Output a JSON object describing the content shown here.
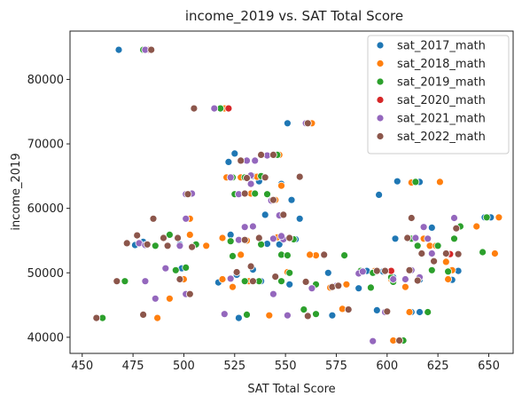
{
  "chart_data": {
    "type": "scatter",
    "title": "income_2019 vs. SAT Total Score",
    "xlabel": "SAT Total Score",
    "ylabel": "income_2019",
    "xlim": [
      444,
      662
    ],
    "ylim": [
      37500,
      87500
    ],
    "xticks": [
      450,
      475,
      500,
      525,
      550,
      575,
      600,
      625,
      650
    ],
    "yticks": [
      40000,
      50000,
      60000,
      70000,
      80000
    ],
    "grid": false,
    "legend_position": "top-right",
    "series": [
      {
        "name": "sat_2017_math",
        "color": "#1f77b4",
        "points": [
          [
            468,
            84600
          ],
          [
            505,
            75500
          ],
          [
            551,
            73200
          ],
          [
            525,
            68500
          ],
          [
            522,
            67200
          ],
          [
            534,
            65000
          ],
          [
            537,
            64200
          ],
          [
            548,
            63800
          ],
          [
            553,
            61300
          ],
          [
            596,
            62100
          ],
          [
            605,
            64200
          ],
          [
            616,
            64100
          ],
          [
            540,
            59000
          ],
          [
            557,
            58400
          ],
          [
            523,
            55900
          ],
          [
            541,
            54500
          ],
          [
            547,
            54400
          ],
          [
            555,
            55200
          ],
          [
            604,
            55300
          ],
          [
            622,
            57000
          ],
          [
            648,
            58600
          ],
          [
            651,
            58600
          ],
          [
            498,
            54400
          ],
          [
            517,
            48500
          ],
          [
            526,
            49700
          ],
          [
            534,
            50500
          ],
          [
            538,
            48700
          ],
          [
            552,
            48200
          ],
          [
            571,
            50000
          ],
          [
            586,
            47600
          ],
          [
            590,
            50300
          ],
          [
            598,
            50200
          ],
          [
            603,
            49300
          ],
          [
            613,
            55300
          ],
          [
            616,
            48900
          ],
          [
            632,
            48900
          ],
          [
            635,
            50300
          ],
          [
            527,
            43000
          ],
          [
            573,
            43400
          ],
          [
            595,
            44200
          ],
          [
            612,
            43900
          ],
          [
            616,
            43900
          ],
          [
            499,
            50700
          ],
          [
            480,
            54800
          ],
          [
            476,
            54300
          ]
        ]
      },
      {
        "name": "sat_2018_math",
        "color": "#ff7f0e",
        "points": [
          [
            482,
            84600
          ],
          [
            520,
            75500
          ],
          [
            563,
            73200
          ],
          [
            528,
            64800
          ],
          [
            536,
            64900
          ],
          [
            547,
            68300
          ],
          [
            521,
            64800
          ],
          [
            533,
            62300
          ],
          [
            545,
            61300
          ],
          [
            548,
            63500
          ],
          [
            612,
            64000
          ],
          [
            626,
            64100
          ],
          [
            503,
            58400
          ],
          [
            503,
            55900
          ],
          [
            511,
            54200
          ],
          [
            519,
            55400
          ],
          [
            528,
            52800
          ],
          [
            531,
            55000
          ],
          [
            546,
            55500
          ],
          [
            565,
            52700
          ],
          [
            580,
            48200
          ],
          [
            618,
            55300
          ],
          [
            621,
            54200
          ],
          [
            624,
            54200
          ],
          [
            629,
            51700
          ],
          [
            632,
            50400
          ],
          [
            644,
            57200
          ],
          [
            655,
            58600
          ],
          [
            653,
            53000
          ],
          [
            519,
            49000
          ],
          [
            524,
            47800
          ],
          [
            532,
            48700
          ],
          [
            551,
            50100
          ],
          [
            562,
            52800
          ],
          [
            572,
            47700
          ],
          [
            578,
            44400
          ],
          [
            594,
            50300
          ],
          [
            602,
            49000
          ],
          [
            609,
            47800
          ],
          [
            611,
            43900
          ],
          [
            630,
            49000
          ],
          [
            542,
            43400
          ],
          [
            493,
            46000
          ],
          [
            500,
            49000
          ],
          [
            487,
            43000
          ],
          [
            603,
            39500
          ]
        ]
      },
      {
        "name": "sat_2019_math",
        "color": "#2ca02c",
        "points": [
          [
            480,
            84600
          ],
          [
            518,
            75500
          ],
          [
            546,
            68300
          ],
          [
            530,
            64800
          ],
          [
            541,
            62200
          ],
          [
            524,
            64800
          ],
          [
            525,
            62200
          ],
          [
            538,
            65000
          ],
          [
            535,
            62300
          ],
          [
            543,
            61300
          ],
          [
            614,
            64100
          ],
          [
            493,
            55900
          ],
          [
            506,
            54400
          ],
          [
            524,
            52600
          ],
          [
            523,
            54900
          ],
          [
            538,
            54400
          ],
          [
            548,
            52800
          ],
          [
            551,
            52700
          ],
          [
            569,
            52700
          ],
          [
            554,
            55200
          ],
          [
            612,
            55300
          ],
          [
            615,
            54200
          ],
          [
            625,
            54200
          ],
          [
            630,
            50200
          ],
          [
            636,
            57200
          ],
          [
            649,
            58600
          ],
          [
            647,
            53200
          ],
          [
            471,
            48700
          ],
          [
            460,
            43000
          ],
          [
            486,
            54200
          ],
          [
            496,
            50400
          ],
          [
            501,
            50800
          ],
          [
            530,
            48700
          ],
          [
            537,
            48700
          ],
          [
            548,
            48700
          ],
          [
            552,
            50000
          ],
          [
            565,
            48200
          ],
          [
            579,
            52700
          ],
          [
            587,
            50300
          ],
          [
            592,
            47700
          ],
          [
            602,
            49300
          ],
          [
            608,
            39500
          ],
          [
            622,
            50400
          ],
          [
            633,
            55300
          ],
          [
            603,
            48600
          ],
          [
            531,
            43500
          ],
          [
            559,
            44300
          ],
          [
            565,
            43600
          ],
          [
            620,
            43900
          ],
          [
            635,
            52900
          ],
          [
            593,
            50000
          ]
        ]
      },
      {
        "name": "sat_2020_math",
        "color": "#d62728",
        "points": [
          [
            483,
            84600
          ],
          [
            522,
            75500
          ],
          [
            561,
            73200
          ],
          [
            602,
            50300
          ],
          [
            631,
            52900
          ]
        ]
      },
      {
        "name": "sat_2021_math",
        "color": "#9467bd",
        "points": [
          [
            481,
            84600
          ],
          [
            515,
            75500
          ],
          [
            560,
            73200
          ],
          [
            531,
            67400
          ],
          [
            535,
            67400
          ],
          [
            541,
            68200
          ],
          [
            523,
            64800
          ],
          [
            533,
            65100
          ],
          [
            501,
            62200
          ],
          [
            504,
            62300
          ],
          [
            527,
            62200
          ],
          [
            533,
            63800
          ],
          [
            543,
            61200
          ],
          [
            547,
            58900
          ],
          [
            501,
            58400
          ],
          [
            478,
            54600
          ],
          [
            481,
            54300
          ],
          [
            498,
            54200
          ],
          [
            527,
            55100
          ],
          [
            534,
            57200
          ],
          [
            544,
            55300
          ],
          [
            549,
            55200
          ],
          [
            575,
            48000
          ],
          [
            586,
            49900
          ],
          [
            603,
            49000
          ],
          [
            612,
            50400
          ],
          [
            616,
            49300
          ],
          [
            620,
            55300
          ],
          [
            622,
            53000
          ],
          [
            629,
            53000
          ],
          [
            633,
            58500
          ],
          [
            491,
            50700
          ],
          [
            501,
            46700
          ],
          [
            523,
            49100
          ],
          [
            520,
            43600
          ],
          [
            551,
            43400
          ],
          [
            563,
            47600
          ],
          [
            588,
            50200
          ],
          [
            593,
            39400
          ],
          [
            599,
            43900
          ],
          [
            618,
            57100
          ],
          [
            481,
            48700
          ],
          [
            486,
            46000
          ],
          [
            530,
            57100
          ],
          [
            544,
            46700
          ],
          [
            548,
            55700
          ],
          [
            609,
            49000
          ],
          [
            614,
            55400
          ]
        ]
      },
      {
        "name": "sat_2022_math",
        "color": "#8c564b",
        "points": [
          [
            484,
            84600
          ],
          [
            505,
            75500
          ],
          [
            561,
            73200
          ],
          [
            538,
            68300
          ],
          [
            544,
            68300
          ],
          [
            528,
            67400
          ],
          [
            531,
            64700
          ],
          [
            540,
            64800
          ],
          [
            502,
            62200
          ],
          [
            530,
            62300
          ],
          [
            544,
            61300
          ],
          [
            549,
            59000
          ],
          [
            557,
            64900
          ],
          [
            485,
            58400
          ],
          [
            477,
            55800
          ],
          [
            472,
            54600
          ],
          [
            482,
            54400
          ],
          [
            490,
            55400
          ],
          [
            497,
            55400
          ],
          [
            504,
            54000
          ],
          [
            530,
            55100
          ],
          [
            537,
            55400
          ],
          [
            552,
            55400
          ],
          [
            569,
            52800
          ],
          [
            610,
            55400
          ],
          [
            612,
            58500
          ],
          [
            617,
            53000
          ],
          [
            623,
            51800
          ],
          [
            629,
            53000
          ],
          [
            635,
            52900
          ],
          [
            467,
            48700
          ],
          [
            492,
            54200
          ],
          [
            498,
            49000
          ],
          [
            503,
            46700
          ],
          [
            526,
            50100
          ],
          [
            533,
            51000
          ],
          [
            534,
            48700
          ],
          [
            545,
            49400
          ],
          [
            560,
            48600
          ],
          [
            573,
            47800
          ],
          [
            576,
            48000
          ],
          [
            581,
            44300
          ],
          [
            595,
            50300
          ],
          [
            599,
            50300
          ],
          [
            611,
            50400
          ],
          [
            480,
            43500
          ],
          [
            457,
            43000
          ],
          [
            561,
            43300
          ],
          [
            600,
            44000
          ],
          [
            606,
            39500
          ],
          [
            615,
            48800
          ],
          [
            634,
            56900
          ]
        ]
      }
    ]
  }
}
